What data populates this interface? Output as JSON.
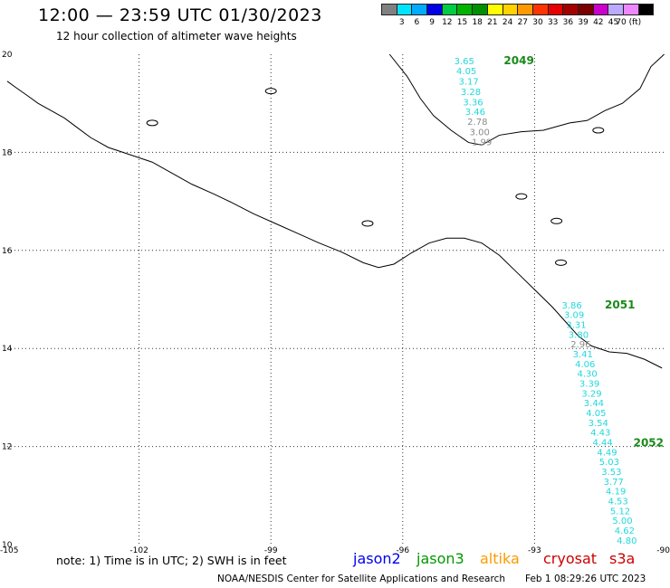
{
  "header": {
    "title": "12:00 — 23:59 UTC 01/30/2023",
    "subtitle": "12 hour collection of altimeter wave heights"
  },
  "scale": {
    "colors": [
      "#808080",
      "#00e5ff",
      "#00aaff",
      "#0000e6",
      "#00cc44",
      "#00b300",
      "#008f00",
      "#ffff00",
      "#ffd200",
      "#ff9900",
      "#ff3300",
      "#e60000",
      "#a30000",
      "#7a0000",
      "#cc00cc",
      "#bbaaff",
      "#ee88ff",
      "#000000"
    ],
    "labels": [
      "3",
      "6",
      "9",
      "12",
      "15",
      "18",
      "21",
      "24",
      "27",
      "30",
      "33",
      "36",
      "39",
      "42",
      "45",
      "70 (ft)"
    ]
  },
  "map": {
    "lat_labels": [
      "20",
      "18",
      "16",
      "14",
      "12",
      "10"
    ],
    "lon_labels": [
      "-105",
      "-102",
      "-99",
      "-96",
      "-93",
      "-90"
    ],
    "colors": {
      "grid": "#333333",
      "coast": "#000000",
      "cyan": "#22d8dd",
      "gray": "#8a8a8a",
      "track": "#1a8a1a"
    }
  },
  "tracks": [
    {
      "id": "2049",
      "label_x": -93.7,
      "label_y": 19.8,
      "points": [
        {
          "lon": -94.6,
          "lat": 19.8,
          "v": "3.65",
          "c": "cyan"
        },
        {
          "lon": -94.55,
          "lat": 19.59,
          "v": "4.05",
          "c": "cyan"
        },
        {
          "lon": -94.5,
          "lat": 19.38,
          "v": "3.17",
          "c": "cyan"
        },
        {
          "lon": -94.45,
          "lat": 19.17,
          "v": "3.28",
          "c": "cyan"
        },
        {
          "lon": -94.4,
          "lat": 18.96,
          "v": "3.36",
          "c": "cyan"
        },
        {
          "lon": -94.35,
          "lat": 18.76,
          "v": "3.46",
          "c": "cyan"
        },
        {
          "lon": -94.3,
          "lat": 18.56,
          "v": "2.78",
          "c": "gray"
        },
        {
          "lon": -94.25,
          "lat": 18.35,
          "v": "3.00",
          "c": "gray"
        },
        {
          "lon": -94.2,
          "lat": 18.15,
          "v": "1.99",
          "c": "gray"
        }
      ]
    },
    {
      "id": "2051",
      "label_x": -91.4,
      "label_y": 14.82,
      "points": [
        {
          "lon": -92.15,
          "lat": 14.82,
          "v": "3.86",
          "c": "cyan"
        },
        {
          "lon": -92.1,
          "lat": 14.62,
          "v": "3.09",
          "c": "cyan"
        },
        {
          "lon": -92.05,
          "lat": 14.42,
          "v": "3.31",
          "c": "cyan"
        },
        {
          "lon": -92.0,
          "lat": 14.22,
          "v": "3.80",
          "c": "cyan"
        },
        {
          "lon": -91.95,
          "lat": 14.02,
          "v": "2.96",
          "c": "gray"
        },
        {
          "lon": -91.9,
          "lat": 13.82,
          "v": "3.41",
          "c": "cyan"
        },
        {
          "lon": -91.85,
          "lat": 13.62,
          "v": "4.06",
          "c": "cyan"
        },
        {
          "lon": -91.8,
          "lat": 13.42,
          "v": "4.30",
          "c": "cyan"
        },
        {
          "lon": -91.75,
          "lat": 13.22,
          "v": "3.39",
          "c": "cyan"
        },
        {
          "lon": -91.7,
          "lat": 13.02,
          "v": "3.29",
          "c": "cyan"
        },
        {
          "lon": -91.65,
          "lat": 12.82,
          "v": "3.44",
          "c": "cyan"
        },
        {
          "lon": -91.6,
          "lat": 12.62,
          "v": "4.05",
          "c": "cyan"
        },
        {
          "lon": -91.55,
          "lat": 12.42,
          "v": "3.54",
          "c": "cyan"
        },
        {
          "lon": -91.5,
          "lat": 12.22,
          "v": "4.43",
          "c": "cyan"
        },
        {
          "lon": -91.45,
          "lat": 12.02,
          "v": "4.44",
          "c": "cyan"
        }
      ]
    },
    {
      "id": "2052",
      "label_x": -90.75,
      "label_y": 12.0,
      "points": [
        {
          "lon": -91.35,
          "lat": 11.82,
          "v": "4.49",
          "c": "cyan"
        },
        {
          "lon": -91.3,
          "lat": 11.62,
          "v": "5.03",
          "c": "cyan"
        },
        {
          "lon": -91.25,
          "lat": 11.42,
          "v": "3.53",
          "c": "cyan"
        },
        {
          "lon": -91.2,
          "lat": 11.22,
          "v": "3.77",
          "c": "cyan"
        },
        {
          "lon": -91.15,
          "lat": 11.02,
          "v": "4.19",
          "c": "cyan"
        },
        {
          "lon": -91.1,
          "lat": 10.82,
          "v": "4.53",
          "c": "cyan"
        },
        {
          "lon": -91.05,
          "lat": 10.62,
          "v": "5.12",
          "c": "cyan"
        },
        {
          "lon": -91.0,
          "lat": 10.42,
          "v": "5.00",
          "c": "cyan"
        },
        {
          "lon": -90.95,
          "lat": 10.22,
          "v": "4.62",
          "c": "cyan"
        },
        {
          "lon": -90.9,
          "lat": 10.02,
          "v": "4.80",
          "c": "cyan"
        }
      ]
    }
  ],
  "note": "note: 1) Time is in UTC; 2) SWH is in feet",
  "legend": [
    {
      "name": "jason2",
      "color": "#0000ee"
    },
    {
      "name": "jason3",
      "color": "#009900"
    },
    {
      "name": "altika",
      "color": "#ff9900"
    },
    {
      "name": "cryosat",
      "color": "#cc0000"
    },
    {
      "name": "s3a",
      "color": "#cc0000"
    }
  ],
  "footer": {
    "credit": "NOAA/NESDIS Center for Satellite Applications and Research",
    "timestamp": "Feb  1 08:29:26 UTC 2023"
  }
}
